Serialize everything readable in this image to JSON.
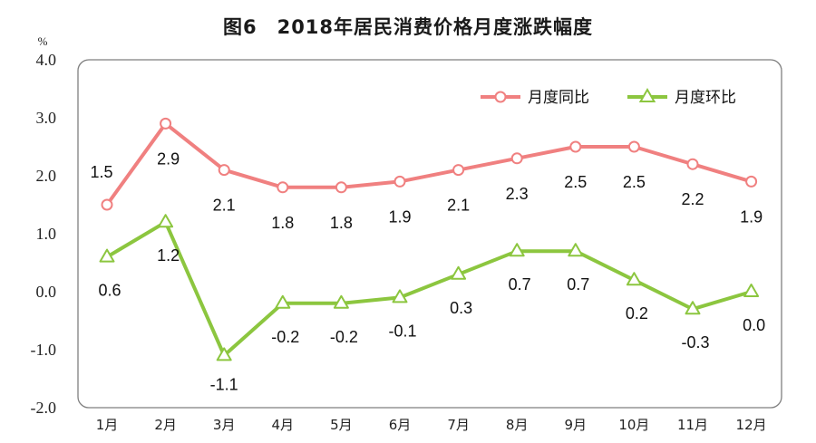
{
  "chart_data": {
    "type": "line",
    "title": "图6　2018年居民消费价格月度涨跌幅度",
    "ylabel": "%",
    "xlabel": "",
    "categories": [
      "1月",
      "2月",
      "3月",
      "4月",
      "5月",
      "6月",
      "7月",
      "8月",
      "9月",
      "10月",
      "11月",
      "12月"
    ],
    "yticks": [
      "4.0",
      "3.0",
      "2.0",
      "1.0",
      "0.0",
      "-1.0",
      "-2.0"
    ],
    "ylim": [
      -2.0,
      4.0
    ],
    "grid": false,
    "legend_position": "top-right",
    "series": [
      {
        "name": "月度同比",
        "color": "#f08080",
        "marker": "circle",
        "values": [
          1.5,
          2.9,
          2.1,
          1.8,
          1.8,
          1.9,
          2.1,
          2.3,
          2.5,
          2.5,
          2.2,
          1.9
        ],
        "labels": [
          "1.5",
          "2.9",
          "2.1",
          "1.8",
          "1.8",
          "1.9",
          "2.1",
          "2.3",
          "2.5",
          "2.5",
          "2.2",
          "1.9"
        ]
      },
      {
        "name": "月度环比",
        "color": "#8cc63f",
        "marker": "triangle",
        "values": [
          0.6,
          1.2,
          -1.1,
          -0.2,
          -0.2,
          -0.1,
          0.3,
          0.7,
          0.7,
          0.2,
          -0.3,
          0.0
        ],
        "labels": [
          "0.6",
          "1.2",
          "-1.1",
          "-0.2",
          "-0.2",
          "-0.1",
          "0.3",
          "0.7",
          "0.7",
          "0.2",
          "-0.3",
          "0.0"
        ]
      }
    ]
  }
}
